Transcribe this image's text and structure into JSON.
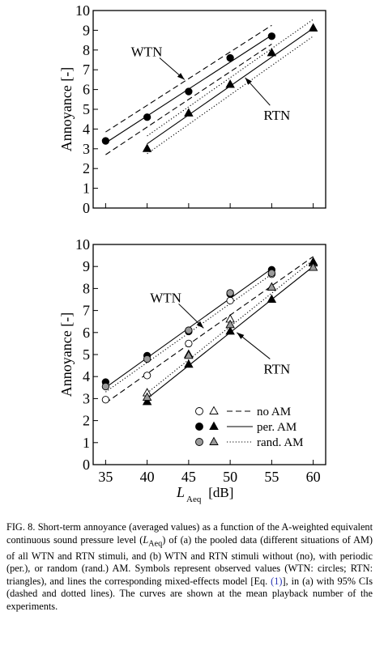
{
  "figure": {
    "x_axis": {
      "label_main": "L",
      "label_sub": "Aeq",
      "label_unit": " [dB]",
      "lim": [
        33.5,
        61.5
      ],
      "ticks": [
        35,
        40,
        45,
        50,
        55,
        60
      ]
    },
    "panels": [
      {
        "id": "a",
        "ylabel": "Annoyance [-]",
        "ylim": [
          0,
          10
        ],
        "yticks": [
          0,
          1,
          2,
          3,
          4,
          5,
          6,
          7,
          8,
          9,
          10
        ],
        "annotations": [
          {
            "text": "WTN",
            "target": [
              44.5,
              6.5
            ],
            "from": [
              41.5,
              7.6
            ]
          },
          {
            "text": "RTN",
            "target": [
              51.8,
              6.6
            ],
            "from": [
              54.8,
              5.2
            ]
          }
        ],
        "series": [
          {
            "name": "WTN",
            "marker": "circle",
            "fill": "#000000",
            "x": [
              35,
              40,
              45,
              50,
              55
            ],
            "y": [
              3.4,
              4.6,
              5.9,
              7.6,
              8.7
            ]
          },
          {
            "name": "RTN",
            "marker": "triangle",
            "fill": "#000000",
            "x": [
              40,
              45,
              50,
              55,
              60
            ],
            "y": [
              3.0,
              4.8,
              6.25,
              7.85,
              9.1
            ]
          }
        ],
        "lines": [
          {
            "style": "solid",
            "x": [
              35,
              55
            ],
            "y": [
              3.3,
              8.75
            ]
          },
          {
            "style": "dashed",
            "x": [
              35,
              55
            ],
            "y": [
              3.85,
              9.25
            ]
          },
          {
            "style": "dashed",
            "x": [
              35,
              55
            ],
            "y": [
              2.7,
              8.3
            ]
          },
          {
            "style": "solid",
            "x": [
              40,
              60
            ],
            "y": [
              3.25,
              9.1
            ]
          },
          {
            "style": "dotted",
            "x": [
              40,
              60
            ],
            "y": [
              3.65,
              9.55
            ]
          },
          {
            "style": "dotted",
            "x": [
              40,
              60
            ],
            "y": [
              2.75,
              8.7
            ]
          }
        ]
      },
      {
        "id": "b",
        "ylabel": "Annoyance [-]",
        "ylim": [
          0,
          10
        ],
        "yticks": [
          0,
          1,
          2,
          3,
          4,
          5,
          6,
          7,
          8,
          9,
          10
        ],
        "annotations": [
          {
            "text": "WTN",
            "target": [
              46.8,
              6.2
            ],
            "from": [
              43.8,
              7.3
            ]
          },
          {
            "text": "RTN",
            "target": [
              50.8,
              6.0
            ],
            "from": [
              54.8,
              4.8
            ]
          }
        ],
        "series": [
          {
            "name": "WTN no AM",
            "marker": "circle",
            "fill": "#ffffff",
            "x": [
              35,
              40,
              45,
              50,
              55
            ],
            "y": [
              2.95,
              4.05,
              5.5,
              7.45,
              8.65
            ]
          },
          {
            "name": "WTN per. AM",
            "marker": "circle",
            "fill": "#000000",
            "x": [
              35,
              40,
              45,
              50,
              55
            ],
            "y": [
              3.75,
              4.95,
              6.05,
              7.75,
              8.85
            ]
          },
          {
            "name": "WTN rand. AM",
            "marker": "circle",
            "fill": "#9a9a9a",
            "x": [
              35,
              40,
              45,
              50,
              55
            ],
            "y": [
              3.55,
              4.8,
              6.1,
              7.8,
              8.7
            ]
          },
          {
            "name": "RTN no AM",
            "marker": "triangle",
            "fill": "#ffffff",
            "x": [
              40,
              45,
              50,
              55,
              60
            ],
            "y": [
              3.25,
              5.0,
              6.6,
              8.05,
              9.15
            ]
          },
          {
            "name": "RTN per. AM",
            "marker": "triangle",
            "fill": "#000000",
            "x": [
              40,
              45,
              50,
              55,
              60
            ],
            "y": [
              2.85,
              4.55,
              6.05,
              7.5,
              9.2
            ]
          },
          {
            "name": "RTN rand. AM",
            "marker": "triangle",
            "fill": "#9a9a9a",
            "x": [
              40,
              45,
              50,
              55,
              60
            ],
            "y": [
              3.05,
              4.95,
              6.35,
              8.05,
              8.95
            ]
          }
        ],
        "lines": [
          {
            "style": "solid",
            "x": [
              35,
              55
            ],
            "y": [
              3.5,
              8.9
            ]
          },
          {
            "style": "dotted",
            "x": [
              35,
              55
            ],
            "y": [
              3.3,
              8.65
            ]
          },
          {
            "style": "dashed",
            "x": [
              35,
              60
            ],
            "y": [
              2.8,
              9.45
            ]
          },
          {
            "style": "dotted",
            "x": [
              40,
              60
            ],
            "y": [
              3.25,
              9.3
            ]
          },
          {
            "style": "solid",
            "x": [
              40,
              60
            ],
            "y": [
              3.0,
              9.0
            ]
          }
        ],
        "legend": [
          {
            "circle": "#ffffff",
            "triangle": "#ffffff",
            "line": "dashed",
            "label": "no AM"
          },
          {
            "circle": "#000000",
            "triangle": "#000000",
            "line": "solid",
            "label": "per. AM"
          },
          {
            "circle": "#9a9a9a",
            "triangle": "#9a9a9a",
            "line": "dotted",
            "label": "rand. AM"
          }
        ]
      }
    ]
  },
  "caption": {
    "fig": "FIG. 8.",
    "part1": " Short-term annoyance (averaged values) as a function of the A-weighted equivalent continuous sound pressure level (",
    "lsym": "L",
    "lsub": "Aeq",
    "part2": ") of (a) the pooled data (different situations of AM) of all WTN and RTN stimuli, and (b) WTN and RTN stimuli without (no), with periodic (per.), or random (rand.) AM. Symbols represent observed values (WTN: circles; RTN: triangles), and lines the corresponding mixed-effects model [Eq. ",
    "eq": "(1)",
    "part3": "], in (a) with 95% CIs (dashed and dotted lines). The curves are shown at the mean playback number of the experiments."
  }
}
